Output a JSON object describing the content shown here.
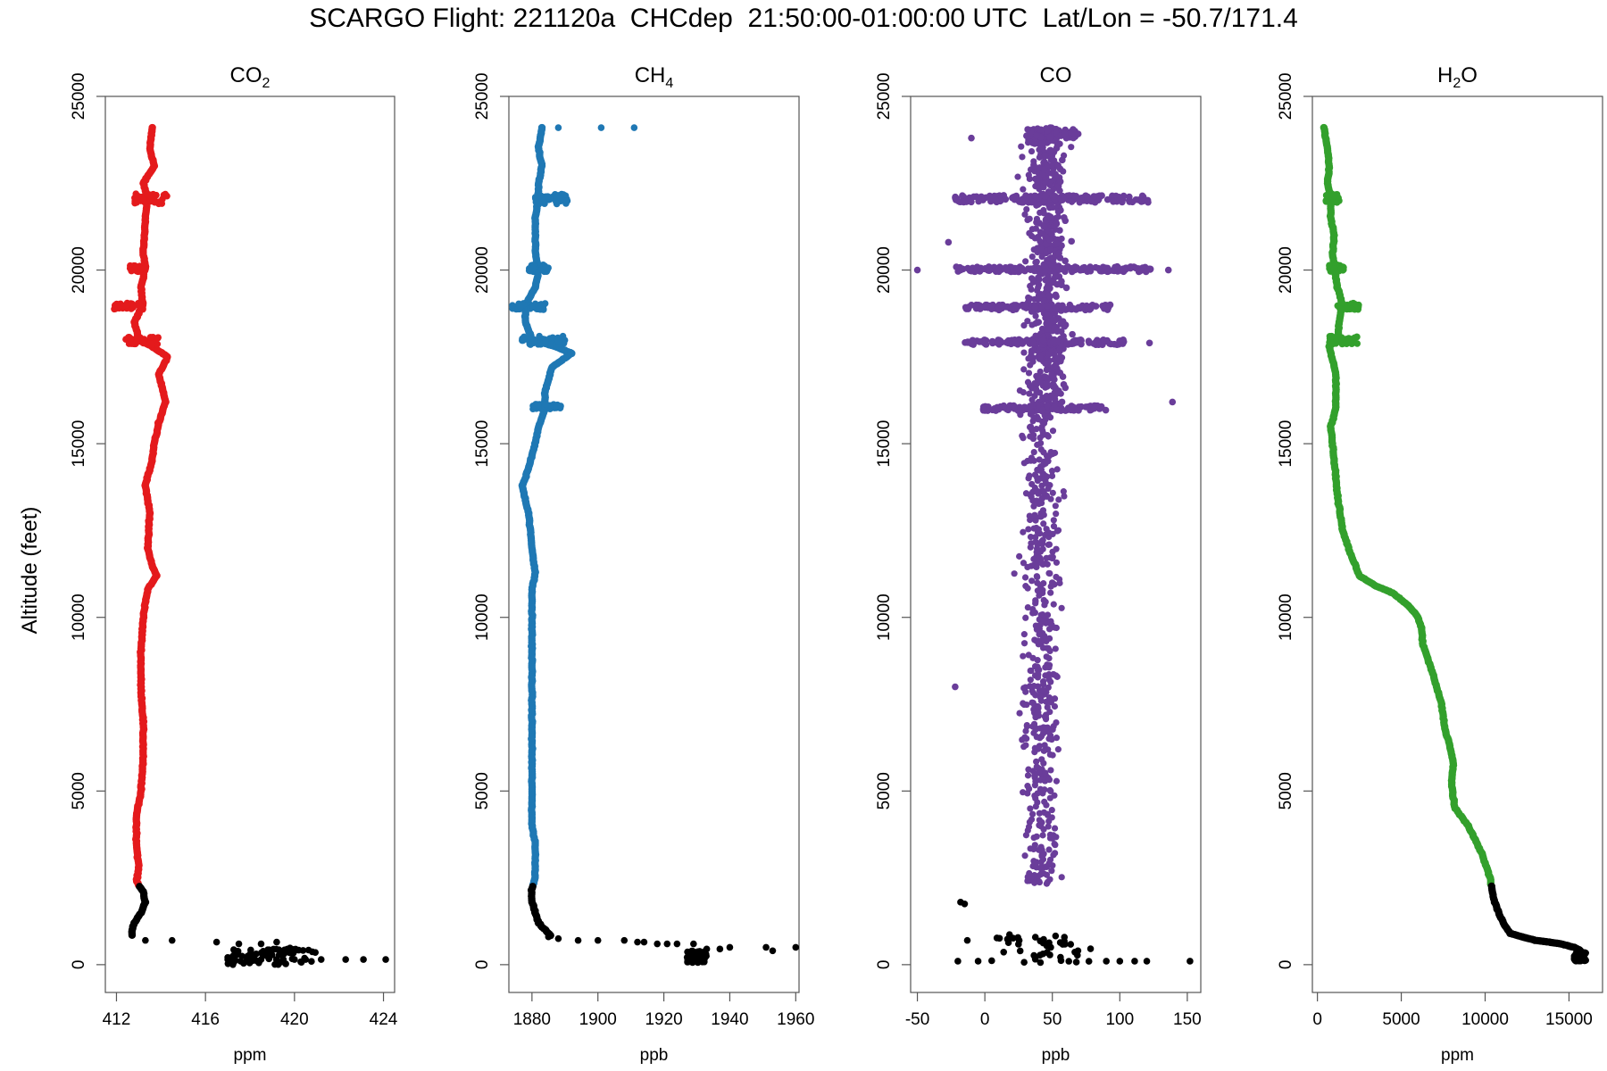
{
  "title": "SCARGO Flight: 221120a  CHCdep  21:50:00-01:00:00 UTC  Lat/Lon = -50.7/171.4",
  "ylabel": "Altitude (feet)",
  "chart_data": [
    {
      "type": "scatter",
      "title": "CO2",
      "title_main": "CO",
      "title_sub": "2",
      "xlabel": "ppm",
      "ylabel": "Altitude (feet)",
      "xlim": [
        411.5,
        424.5
      ],
      "ylim": [
        -800,
        25000
      ],
      "xticks": [
        412,
        416,
        420,
        424
      ],
      "yticks": [
        0,
        5000,
        10000,
        15000,
        20000,
        25000
      ],
      "color": "#e41a1c",
      "low_color": "#000000",
      "low_cutoff": 2300,
      "profile": [
        [
          413.6,
          24100
        ],
        [
          413.5,
          23500
        ],
        [
          413.7,
          23000
        ],
        [
          413.2,
          22500
        ],
        [
          413.4,
          22100
        ],
        [
          413.3,
          21500
        ],
        [
          413.2,
          20500
        ],
        [
          413.3,
          20100
        ],
        [
          413.1,
          19500
        ],
        [
          413.2,
          19000
        ],
        [
          412.8,
          18500
        ],
        [
          413.0,
          18000
        ],
        [
          413.6,
          17800
        ],
        [
          414.3,
          17500
        ],
        [
          413.9,
          17000
        ],
        [
          414.2,
          16200
        ],
        [
          413.9,
          15600
        ],
        [
          413.7,
          15000
        ],
        [
          413.6,
          14500
        ],
        [
          413.3,
          13800
        ],
        [
          413.5,
          13000
        ],
        [
          413.4,
          12000
        ],
        [
          413.6,
          11500
        ],
        [
          413.8,
          11200
        ],
        [
          413.4,
          10800
        ],
        [
          413.2,
          10000
        ],
        [
          413.1,
          9000
        ],
        [
          413.1,
          8000
        ],
        [
          413.2,
          7000
        ],
        [
          413.2,
          6000
        ],
        [
          413.1,
          5000
        ],
        [
          412.9,
          4300
        ],
        [
          412.9,
          3500
        ],
        [
          413.0,
          2800
        ],
        [
          412.9,
          2400
        ],
        [
          413.2,
          2100
        ],
        [
          413.3,
          1800
        ],
        [
          413.1,
          1500
        ],
        [
          412.8,
          1200
        ],
        [
          412.7,
          1000
        ],
        [
          412.7,
          800
        ]
      ],
      "spikes": [
        [
          21900,
          22200,
          412.8,
          414.3
        ],
        [
          19950,
          20150,
          412.6,
          413.3
        ],
        [
          18850,
          19050,
          411.9,
          413.2
        ],
        [
          17850,
          18100,
          412.4,
          413.9
        ]
      ],
      "sparse": [
        [
          413.3,
          700
        ],
        [
          414.5,
          700
        ],
        [
          416.5,
          650
        ],
        [
          417.5,
          600
        ],
        [
          418.5,
          600
        ],
        [
          419.2,
          650
        ],
        [
          419.8,
          480
        ],
        [
          419.3,
          430
        ],
        [
          418.8,
          400
        ],
        [
          418.0,
          300
        ],
        [
          417.0,
          150
        ],
        [
          417.3,
          150
        ],
        [
          418.5,
          150
        ],
        [
          419.5,
          150
        ],
        [
          420.0,
          150
        ],
        [
          420.5,
          150
        ],
        [
          421.2,
          150
        ],
        [
          422.3,
          150
        ],
        [
          423.1,
          150
        ],
        [
          424.1,
          150
        ]
      ],
      "bottom_dense": [
        [
          417.0,
          421.0,
          0,
          450
        ]
      ]
    },
    {
      "type": "scatter",
      "title": "CH4",
      "title_main": "CH",
      "title_sub": "4",
      "xlabel": "ppb",
      "ylabel": "Altitude (feet)",
      "xlim": [
        1873,
        1961
      ],
      "ylim": [
        -800,
        25000
      ],
      "xticks": [
        1880,
        1900,
        1920,
        1940,
        1960
      ],
      "yticks": [
        0,
        5000,
        10000,
        15000,
        20000,
        25000
      ],
      "color": "#1f78b4",
      "low_color": "#000000",
      "low_cutoff": 2300,
      "profile": [
        [
          1883,
          24100
        ],
        [
          1882,
          23500
        ],
        [
          1883,
          23000
        ],
        [
          1882,
          22500
        ],
        [
          1882,
          22100
        ],
        [
          1881,
          21500
        ],
        [
          1881,
          20500
        ],
        [
          1882,
          20000
        ],
        [
          1881,
          19500
        ],
        [
          1878,
          19000
        ],
        [
          1878,
          18500
        ],
        [
          1880,
          18000
        ],
        [
          1887,
          17800
        ],
        [
          1892,
          17600
        ],
        [
          1886,
          17200
        ],
        [
          1884,
          16500
        ],
        [
          1884,
          16000
        ],
        [
          1882,
          15500
        ],
        [
          1881,
          15000
        ],
        [
          1878,
          14000
        ],
        [
          1877,
          13800
        ],
        [
          1879,
          13000
        ],
        [
          1880,
          12000
        ],
        [
          1881,
          11300
        ],
        [
          1880,
          10800
        ],
        [
          1880,
          10000
        ],
        [
          1880,
          9000
        ],
        [
          1880,
          8000
        ],
        [
          1880,
          7000
        ],
        [
          1880,
          6000
        ],
        [
          1880,
          5000
        ],
        [
          1880,
          4000
        ],
        [
          1881,
          3500
        ],
        [
          1881,
          3000
        ],
        [
          1881,
          2500
        ],
        [
          1880,
          2200
        ],
        [
          1880,
          1800
        ],
        [
          1881,
          1500
        ],
        [
          1882,
          1200
        ],
        [
          1884,
          1000
        ],
        [
          1886,
          800
        ]
      ],
      "spikes": [
        [
          21900,
          22200,
          1881,
          1891
        ],
        [
          19950,
          20150,
          1879,
          1885
        ],
        [
          18850,
          19050,
          1874,
          1884
        ],
        [
          17850,
          18100,
          1877,
          1890
        ],
        [
          16000,
          16150,
          1880,
          1889
        ]
      ],
      "sparse": [
        [
          1885,
          800
        ],
        [
          1888,
          750
        ],
        [
          1894,
          700
        ],
        [
          1900,
          700
        ],
        [
          1908,
          700
        ],
        [
          1912,
          650
        ],
        [
          1914,
          650
        ],
        [
          1918,
          600
        ],
        [
          1921,
          600
        ],
        [
          1924,
          600
        ],
        [
          1929,
          600
        ],
        [
          1933,
          450
        ],
        [
          1937,
          450
        ],
        [
          1940,
          500
        ],
        [
          1951,
          500
        ],
        [
          1953,
          400
        ],
        [
          1960,
          500
        ],
        [
          1901,
          24100
        ],
        [
          1911,
          24100
        ],
        [
          1888,
          24100
        ]
      ],
      "bottom_dense": [
        [
          1927,
          1933,
          50,
          400
        ]
      ]
    },
    {
      "type": "scatter",
      "title": "CO",
      "title_main": "CO",
      "title_sub": "",
      "xlabel": "ppb",
      "ylabel": "Altitude (feet)",
      "xlim": [
        -55,
        160
      ],
      "ylim": [
        -800,
        25000
      ],
      "xticks": [
        -50,
        0,
        50,
        100,
        150
      ],
      "yticks": [
        0,
        5000,
        10000,
        15000,
        20000,
        25000
      ],
      "color": "#6a3d9a",
      "low_color": "#000000",
      "low_cutoff": 2300,
      "center": 50,
      "sparse": [
        [
          -50,
          20000
        ],
        [
          136,
          20000
        ],
        [
          -22,
          8000
        ],
        [
          -27,
          20800
        ],
        [
          -10,
          23800
        ],
        [
          122,
          17900
        ],
        [
          139,
          16200
        ],
        [
          152,
          100
        ],
        [
          -20,
          100
        ],
        [
          -5,
          100
        ],
        [
          -18,
          1800
        ],
        [
          -15,
          1750
        ],
        [
          -13,
          700
        ],
        [
          100,
          100
        ],
        [
          120,
          100
        ],
        [
          111,
          100
        ],
        [
          90,
          100
        ]
      ],
      "spikes": [
        [
          23800,
          24100,
          30,
          70
        ],
        [
          21950,
          22150,
          -22,
          122
        ],
        [
          19950,
          20100,
          -24,
          123
        ],
        [
          18850,
          19000,
          -15,
          93
        ],
        [
          17850,
          18000,
          -15,
          106
        ],
        [
          15950,
          16100,
          -2,
          90
        ]
      ],
      "bottom_dense": [
        [
          5,
          80,
          50,
          900
        ]
      ]
    },
    {
      "type": "scatter",
      "title": "H2O",
      "title_main": "H",
      "title_sub": "2",
      "title_post": "O",
      "xlabel": "ppm",
      "ylabel": "Altitude (feet)",
      "xlim": [
        -300,
        17000
      ],
      "ylim": [
        -800,
        25000
      ],
      "xticks": [
        0,
        5000,
        10000,
        15000
      ],
      "yticks": [
        0,
        5000,
        10000,
        15000,
        20000,
        25000
      ],
      "color": "#33a02c",
      "low_color": "#000000",
      "low_cutoff": 2300,
      "profile": [
        [
          400,
          24100
        ],
        [
          600,
          23500
        ],
        [
          700,
          23000
        ],
        [
          600,
          22500
        ],
        [
          800,
          22100
        ],
        [
          800,
          21500
        ],
        [
          1000,
          21000
        ],
        [
          900,
          20500
        ],
        [
          1000,
          20000
        ],
        [
          1200,
          19500
        ],
        [
          1500,
          19000
        ],
        [
          1300,
          18500
        ],
        [
          1200,
          18000
        ],
        [
          700,
          17800
        ],
        [
          1100,
          17000
        ],
        [
          1100,
          16000
        ],
        [
          800,
          15500
        ],
        [
          1000,
          14500
        ],
        [
          1200,
          13500
        ],
        [
          1500,
          12500
        ],
        [
          2000,
          11800
        ],
        [
          2500,
          11200
        ],
        [
          3500,
          10900
        ],
        [
          4500,
          10700
        ],
        [
          5500,
          10300
        ],
        [
          6000,
          10000
        ],
        [
          6200,
          9700
        ],
        [
          6300,
          9200
        ],
        [
          6800,
          8500
        ],
        [
          7400,
          7500
        ],
        [
          7600,
          6800
        ],
        [
          7900,
          6300
        ],
        [
          8100,
          5800
        ],
        [
          8000,
          5300
        ],
        [
          8100,
          4800
        ],
        [
          8200,
          4500
        ],
        [
          9000,
          4000
        ],
        [
          9800,
          3200
        ],
        [
          10300,
          2500
        ],
        [
          10400,
          2200
        ],
        [
          10500,
          1900
        ],
        [
          10800,
          1500
        ],
        [
          11100,
          1200
        ],
        [
          11500,
          900
        ],
        [
          12200,
          800
        ],
        [
          13000,
          700
        ],
        [
          13800,
          650
        ],
        [
          14500,
          600
        ],
        [
          15300,
          500
        ],
        [
          15700,
          400
        ],
        [
          15800,
          150
        ]
      ],
      "spikes": [
        [
          21900,
          22200,
          500,
          1300
        ],
        [
          19950,
          20150,
          700,
          1600
        ],
        [
          18850,
          19050,
          1200,
          2500
        ],
        [
          17850,
          18100,
          700,
          2400
        ]
      ],
      "sparse": [],
      "bottom_dense": [
        [
          15300,
          16000,
          100,
          350
        ]
      ]
    }
  ]
}
